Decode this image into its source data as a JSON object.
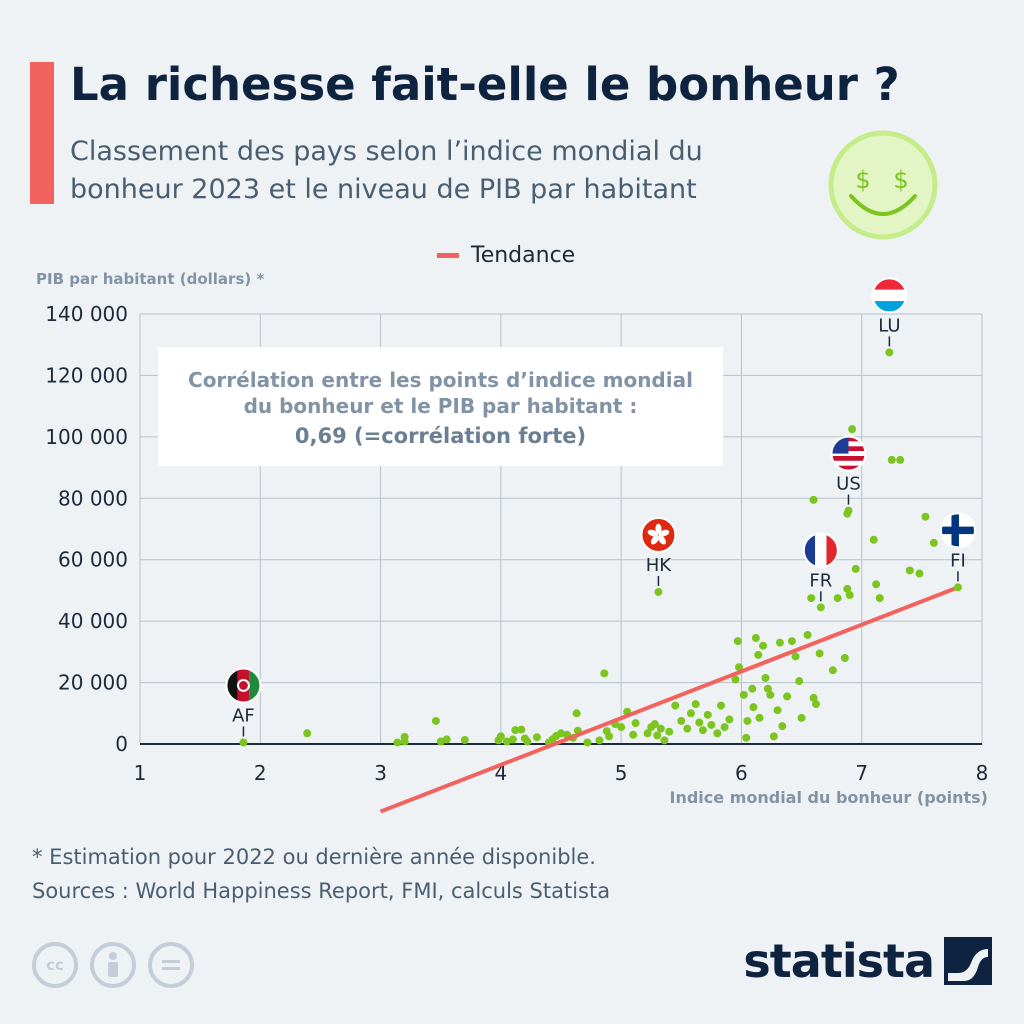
{
  "header": {
    "title": "La richesse fait-elle le bonheur ?",
    "subtitle": "Classement des pays selon l’indice mondial du bonheur 2023 et le niveau de PIB par habitant"
  },
  "annotation": {
    "line1": "Corrélation entre les points d’indice mondial",
    "line2": "du bonheur et le PIB par habitant :",
    "line3": "0,69 (=corrélation forte)"
  },
  "footer": {
    "footnote": "* Estimation pour 2022 ou dernière année disponible.",
    "sources": "Sources : World Happiness Report, FMI, calculs Statista",
    "brand": "statista",
    "cc_icons": [
      "cc",
      "by",
      "nd"
    ]
  },
  "colors": {
    "accent": "#f2625e",
    "points": "#7cc520",
    "title": "#0d2340",
    "grid": "#b7c0ca"
  },
  "chart_data": {
    "type": "scatter",
    "xlabel": "Indice mondial du bonheur (points)",
    "ylabel": "PIB par habitant (dollars) *",
    "xlim": [
      1,
      8
    ],
    "ylim": [
      0,
      140000
    ],
    "xticks": [
      "1",
      "2",
      "3",
      "4",
      "5",
      "6",
      "7",
      "8"
    ],
    "yticks": [
      "0",
      "20 000",
      "40 000",
      "60 000",
      "80 000",
      "100 000",
      "120 000",
      "140 000"
    ],
    "grid": true,
    "legend": {
      "position": "top-center",
      "entries": [
        "Tendance"
      ]
    },
    "trend": {
      "name": "Tendance",
      "from": [
        3.0,
        -22000
      ],
      "to": [
        7.8,
        51000
      ]
    },
    "labeled_points": [
      {
        "code": "AF",
        "x": 1.86,
        "y": 500,
        "flag": "afghanistan"
      },
      {
        "code": "HK",
        "x": 5.31,
        "y": 49500,
        "flag": "hong-kong"
      },
      {
        "code": "FR",
        "x": 6.66,
        "y": 44500,
        "flag": "france"
      },
      {
        "code": "US",
        "x": 6.89,
        "y": 76000,
        "flag": "united-states"
      },
      {
        "code": "LU",
        "x": 7.23,
        "y": 127500,
        "flag": "luxembourg"
      },
      {
        "code": "FI",
        "x": 7.8,
        "y": 51000,
        "flag": "finland"
      }
    ],
    "points": [
      [
        2.39,
        3500
      ],
      [
        3.14,
        500
      ],
      [
        3.2,
        2300
      ],
      [
        3.2,
        800
      ],
      [
        3.46,
        7500
      ],
      [
        3.5,
        800
      ],
      [
        3.55,
        1500
      ],
      [
        3.7,
        1300
      ],
      [
        3.98,
        1200
      ],
      [
        4.0,
        2500
      ],
      [
        4.05,
        800
      ],
      [
        4.1,
        1500
      ],
      [
        4.12,
        4500
      ],
      [
        4.17,
        4700
      ],
      [
        4.2,
        1800
      ],
      [
        4.22,
        800
      ],
      [
        4.3,
        2200
      ],
      [
        4.4,
        500
      ],
      [
        4.43,
        1500
      ],
      [
        4.46,
        2600
      ],
      [
        4.5,
        3500
      ],
      [
        4.55,
        3000
      ],
      [
        4.6,
        2000
      ],
      [
        4.64,
        4300
      ],
      [
        4.63,
        10000
      ],
      [
        4.72,
        500
      ],
      [
        4.82,
        1200
      ],
      [
        4.86,
        23000
      ],
      [
        4.88,
        4200
      ],
      [
        4.9,
        2500
      ],
      [
        4.95,
        6500
      ],
      [
        5.0,
        5500
      ],
      [
        5.05,
        10500
      ],
      [
        5.1,
        3000
      ],
      [
        5.12,
        6800
      ],
      [
        5.22,
        3500
      ],
      [
        5.25,
        5500
      ],
      [
        5.28,
        6500
      ],
      [
        5.3,
        2800
      ],
      [
        5.33,
        5000
      ],
      [
        5.36,
        1200
      ],
      [
        5.4,
        4000
      ],
      [
        5.45,
        12500
      ],
      [
        5.5,
        7500
      ],
      [
        5.55,
        5000
      ],
      [
        5.58,
        10000
      ],
      [
        5.62,
        13000
      ],
      [
        5.65,
        7000
      ],
      [
        5.68,
        4500
      ],
      [
        5.72,
        9500
      ],
      [
        5.75,
        6200
      ],
      [
        5.8,
        3500
      ],
      [
        5.83,
        12500
      ],
      [
        5.86,
        5500
      ],
      [
        5.9,
        8000
      ],
      [
        5.95,
        21000
      ],
      [
        5.97,
        33500
      ],
      [
        5.98,
        25000
      ],
      [
        6.02,
        16000
      ],
      [
        6.04,
        2000
      ],
      [
        6.05,
        7500
      ],
      [
        6.09,
        18000
      ],
      [
        6.1,
        12000
      ],
      [
        6.12,
        34500
      ],
      [
        6.14,
        29000
      ],
      [
        6.15,
        8500
      ],
      [
        6.18,
        32000
      ],
      [
        6.2,
        21500
      ],
      [
        6.22,
        18000
      ],
      [
        6.24,
        16000
      ],
      [
        6.27,
        2500
      ],
      [
        6.3,
        11000
      ],
      [
        6.32,
        33000
      ],
      [
        6.34,
        5800
      ],
      [
        6.38,
        15500
      ],
      [
        6.42,
        33500
      ],
      [
        6.45,
        28500
      ],
      [
        6.48,
        20500
      ],
      [
        6.5,
        8500
      ],
      [
        6.55,
        35500
      ],
      [
        6.58,
        47500
      ],
      [
        6.6,
        15000
      ],
      [
        6.62,
        13000
      ],
      [
        6.65,
        29500
      ],
      [
        6.76,
        24000
      ],
      [
        6.8,
        47500
      ],
      [
        6.86,
        28000
      ],
      [
        6.88,
        50500
      ],
      [
        6.9,
        48500
      ],
      [
        6.92,
        102500
      ],
      [
        6.95,
        57000
      ],
      [
        6.6,
        79500
      ],
      [
        7.1,
        66500
      ],
      [
        7.12,
        52000
      ],
      [
        7.15,
        47500
      ],
      [
        7.25,
        92500
      ],
      [
        7.32,
        92500
      ],
      [
        7.4,
        56500
      ],
      [
        7.48,
        55500
      ],
      [
        7.53,
        74000
      ],
      [
        7.6,
        65500
      ],
      [
        6.88,
        75000
      ]
    ]
  }
}
